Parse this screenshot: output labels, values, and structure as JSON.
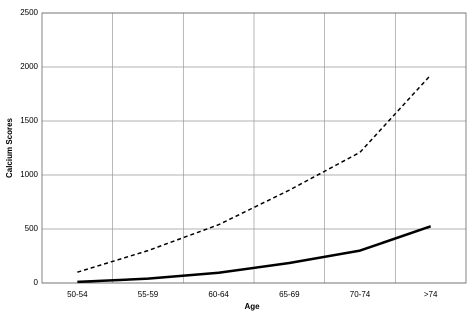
{
  "chart_data": {
    "type": "line",
    "x_label": "Age",
    "y_label": "Calcium Scores",
    "categories": [
      "50-54",
      "55-59",
      "60-64",
      "65-69",
      "70-74",
      ">74"
    ],
    "series": [
      {
        "color": "#000000",
        "dash": true,
        "values": [
          100,
          300,
          540,
          860,
          1210,
          1925
        ]
      },
      {
        "color": "#000000",
        "dash": false,
        "values": [
          10,
          40,
          95,
          185,
          300,
          525
        ]
      }
    ],
    "ylim": [
      0,
      2500
    ],
    "yticks": [
      0,
      500,
      1000,
      1500,
      2000,
      2500
    ],
    "grid": true
  }
}
